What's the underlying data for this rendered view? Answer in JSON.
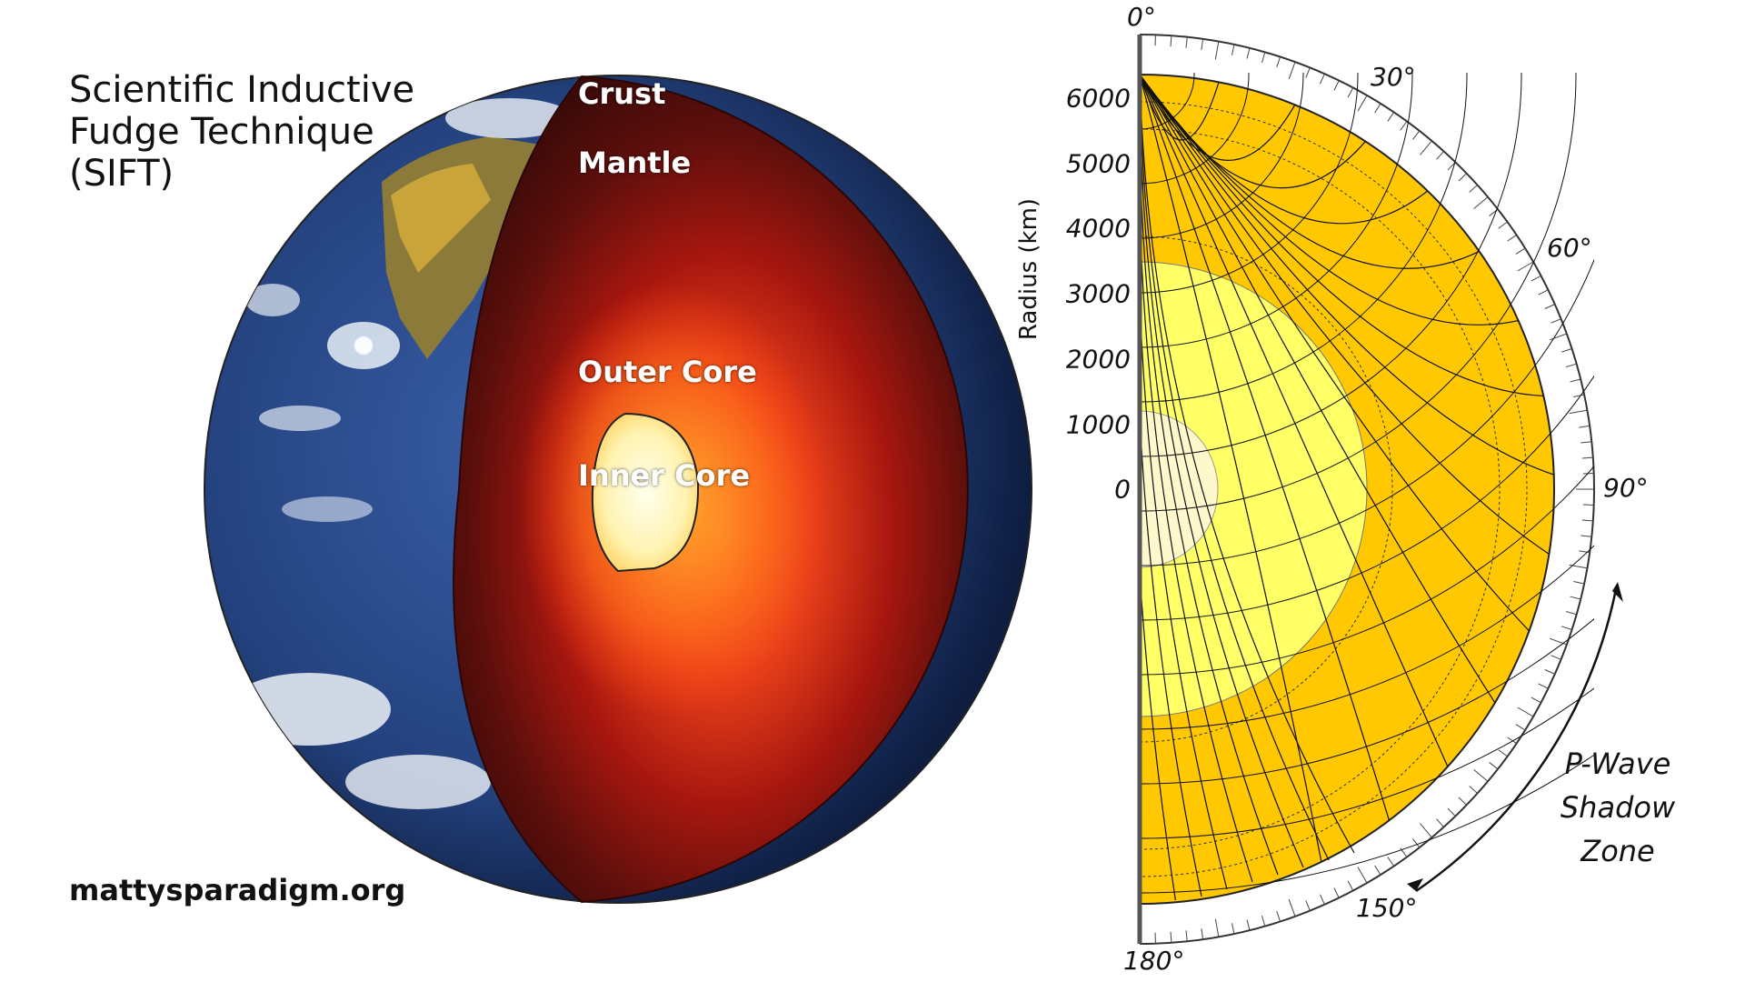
{
  "title": {
    "lines": [
      "Scientific Inductive",
      "Fudge Technique",
      "(SIFT)"
    ]
  },
  "website": "mattysparadigm.org",
  "earth_cutaway": {
    "layers": [
      "Crust",
      "Mantle",
      "Outer Core",
      "Inner Core"
    ]
  },
  "wave_diagram": {
    "axis_title": "Radius (km)",
    "radius_ticks": [
      "6000",
      "5000",
      "4000",
      "3000",
      "2000",
      "1000",
      "0"
    ],
    "angle_labels": [
      "0°",
      "30°",
      "60°",
      "90°",
      "150°",
      "180°"
    ],
    "shadow_zone_label": [
      "P-Wave",
      "Shadow",
      "Zone"
    ]
  },
  "colors": {
    "ocean": "#23417d",
    "mantle_dark": "#4a0d0c",
    "outer_core": "#e8401a",
    "inner_core": "#fff7cc",
    "mantle_yellow": "#ffc800",
    "core_yellow": "#ffff66"
  }
}
